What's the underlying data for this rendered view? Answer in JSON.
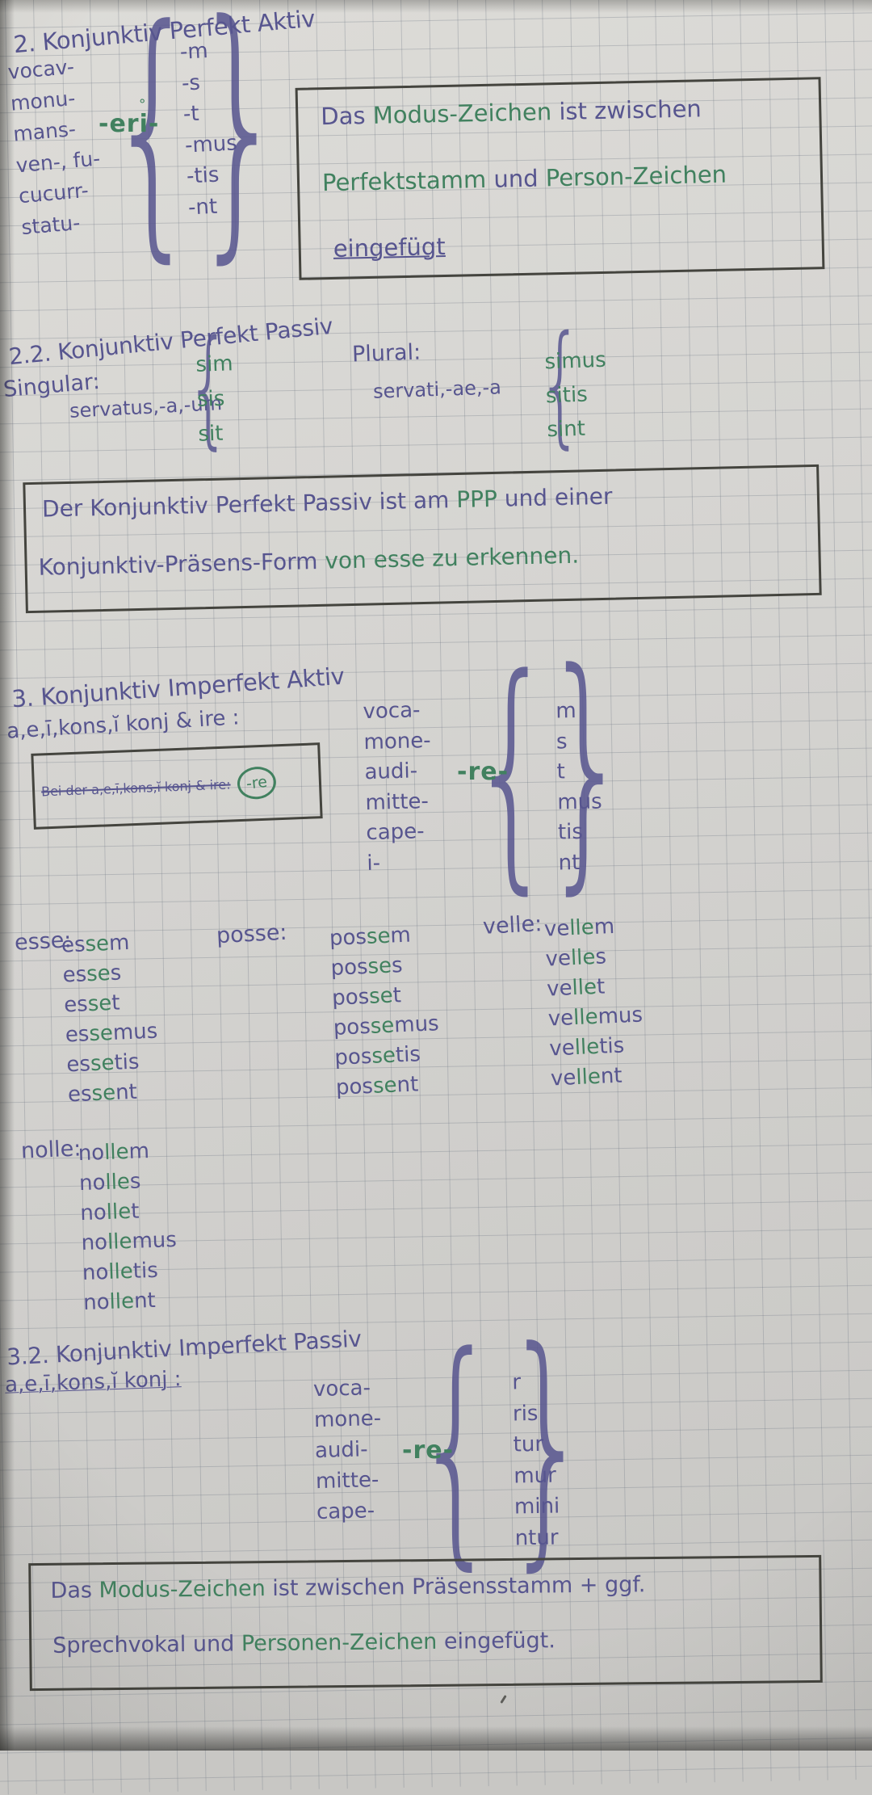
{
  "page": {
    "colors": {
      "ink": "#57558f",
      "green": "#41815f",
      "pencil": "#44443e",
      "grid": "rgba(115,123,135,0.33)"
    }
  },
  "glyphs": {
    "brace_open": "{",
    "brace_close": "}",
    "ring": "°"
  },
  "sec2": {
    "title": "2. Konjunktiv Perfekt Aktiv",
    "stems": [
      "vocav-",
      "monu-",
      "mans-",
      "ven-, fu-",
      "cucurr-",
      "statu-"
    ],
    "sign": "-eri-",
    "endings": [
      "-m",
      "-s",
      "-t",
      "-mus",
      "-tis",
      "-nt"
    ],
    "box": [
      "Das [Modus-Zeichen] ist zwischen",
      "[Perfektstamm] und [Person-Zeichen]",
      "eingefügt"
    ]
  },
  "sec22": {
    "title": "2.2. Konjunktiv Perfekt Passiv",
    "singular_label": "Singular:",
    "singular_stem": "servatus,-a,-um",
    "singular_forms": [
      "sim",
      "sis",
      "sit"
    ],
    "plural_label": "Plural:",
    "plural_stem": "servati,-ae,-a",
    "plural_forms": [
      "simus",
      "sitis",
      "sint"
    ],
    "box": [
      "Der Konjunktiv Perfekt Passiv ist am [PPP] und einer",
      "Konjunktiv-Präsens-Form [von esse zu erkennen.]"
    ]
  },
  "sec3": {
    "title": "3. Konjunktiv Imperfekt Aktiv",
    "subtitle": "a,e,ī,kons,ĭ konj & ire :",
    "note_struck": "Bei der a,e,ī,kons,ĭ konj & ire:",
    "note_circled": "-re",
    "stems": [
      "voca-",
      "mone-",
      "audi-",
      "mitte-",
      "cape-",
      "i-"
    ],
    "sign": "-re-",
    "endings": [
      "m",
      "s",
      "t",
      "mus",
      "tis",
      "nt"
    ]
  },
  "verbs": [
    {
      "label": "esse:",
      "forms": [
        "es[se]m",
        "es[se]s",
        "es[se]t",
        "es[se]mus",
        "es[se]tis",
        "es[se]nt"
      ]
    },
    {
      "label": "posse:",
      "forms": [
        "pos[se]m",
        "pos[se]s",
        "pos[se]t",
        "pos[se]mus",
        "pos[se]tis",
        "pos[se]nt"
      ]
    },
    {
      "label": "velle:",
      "forms": [
        "ve[lle]m",
        "ve[lle]s",
        "ve[lle]t",
        "ve[lle]mus",
        "ve[lle]tis",
        "ve[lle]nt"
      ]
    }
  ],
  "nolle": {
    "label": "nolle:",
    "forms": [
      "no[lle]m",
      "no[lle]s",
      "no[lle]t",
      "no[lle]mus",
      "no[lle]tis",
      "no[lle]nt"
    ]
  },
  "sec32": {
    "title": "3.2. Konjunktiv Imperfekt Passiv",
    "subtitle": "a,e,ī,kons,ĭ konj :",
    "stems": [
      "voca-",
      "mone-",
      "audi-",
      "mitte-",
      "cape-"
    ],
    "sign": "-re-",
    "endings": [
      "r",
      "ris",
      "tur",
      "mur",
      "mini",
      "ntur"
    ]
  },
  "box_bottom": [
    "Das [Modus-Zeichen] ist zwischen Präsensstamm + ggf.",
    "Sprechvokal und [Personen-Zeichen] eingefügt."
  ]
}
